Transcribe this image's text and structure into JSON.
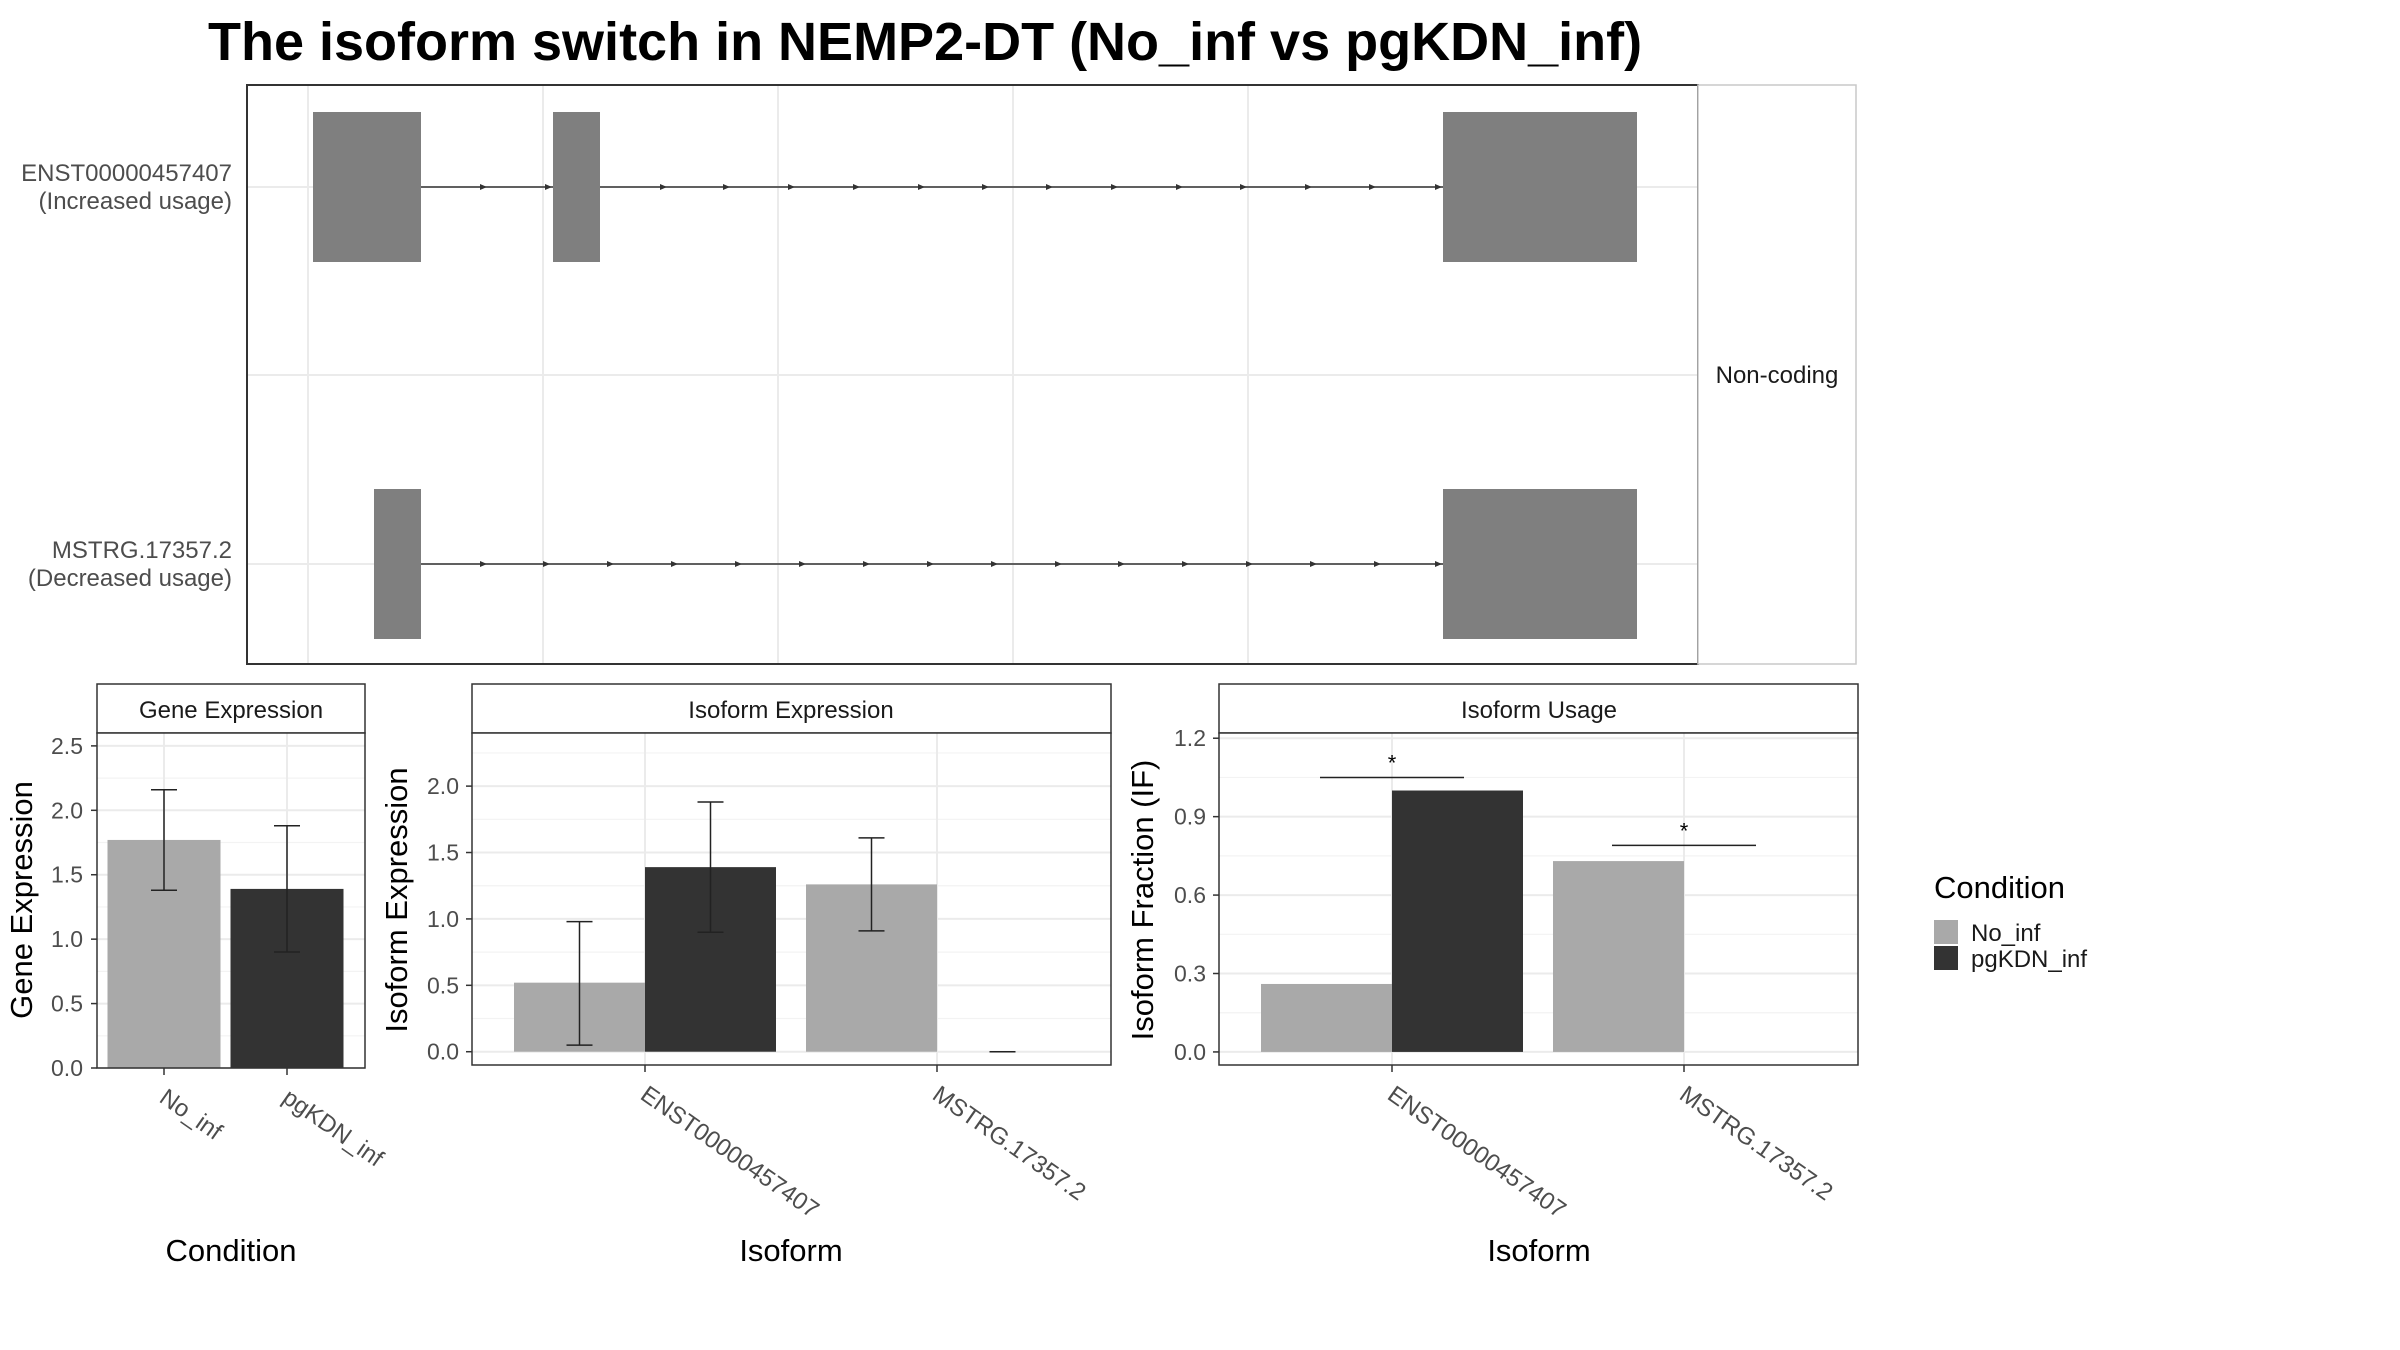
{
  "title": "The isoform switch in NEMP2-DT (No_inf vs pgKDN_inf)",
  "colors": {
    "No_inf": "#a9a9a9",
    "pgKDN_inf": "#333333",
    "exon": "#7f7f7f",
    "grid": "#ebebeb"
  },
  "chart_data": [
    {
      "type": "gene-structure",
      "strip_label": "Non-coding",
      "transcripts": [
        {
          "id": "ENST00000457407",
          "note": "(Increased usage)"
        },
        {
          "id": "MSTRG.17357.2",
          "note": "(Decreased usage)"
        }
      ]
    },
    {
      "type": "bar",
      "panel_title": "Gene Expression",
      "xlabel": "Condition",
      "ylabel": "Gene Expression",
      "ylim": [
        0,
        2.6
      ],
      "yticks": [
        "0.0",
        "0.5",
        "1.0",
        "1.5",
        "2.0",
        "2.5"
      ],
      "categories": [
        "No_inf",
        "pgKDN_inf"
      ],
      "values": [
        1.77,
        1.39
      ],
      "errors": [
        [
          1.38,
          2.16
        ],
        [
          0.9,
          1.88
        ]
      ]
    },
    {
      "type": "bar",
      "panel_title": "Isoform Expression",
      "xlabel": "Isoform",
      "ylabel": "Isoform Expression",
      "ylim": [
        -0.1,
        2.4
      ],
      "yticks": [
        "0.0",
        "0.5",
        "1.0",
        "1.5",
        "2.0"
      ],
      "categories": [
        "ENST00000457407",
        "MSTRG.17357.2"
      ],
      "series": [
        {
          "name": "No_inf",
          "values": [
            0.52,
            1.26
          ],
          "errors": [
            [
              0.05,
              0.98
            ],
            [
              0.91,
              1.61
            ]
          ]
        },
        {
          "name": "pgKDN_inf",
          "values": [
            1.39,
            0.0
          ],
          "errors": [
            [
              0.9,
              1.88
            ],
            [
              0.0,
              0.0
            ]
          ]
        }
      ]
    },
    {
      "type": "bar",
      "panel_title": "Isoform Usage",
      "xlabel": "Isoform",
      "ylabel": "Isoform Fraction (IF)",
      "ylim": [
        -0.05,
        1.22
      ],
      "yticks": [
        "0.0",
        "0.3",
        "0.6",
        "0.9",
        "1.2"
      ],
      "categories": [
        "ENST00000457407",
        "MSTRG.17357.2"
      ],
      "series": [
        {
          "name": "No_inf",
          "values": [
            0.26,
            0.73
          ]
        },
        {
          "name": "pgKDN_inf",
          "values": [
            1.0,
            0.0
          ]
        }
      ],
      "significance": [
        {
          "category": "ENST00000457407",
          "label": "*",
          "y": 1.05
        },
        {
          "category": "MSTRG.17357.2",
          "label": "*",
          "y": 0.79
        }
      ]
    }
  ],
  "legend": {
    "title": "Condition",
    "items": [
      "No_inf",
      "pgKDN_inf"
    ]
  }
}
